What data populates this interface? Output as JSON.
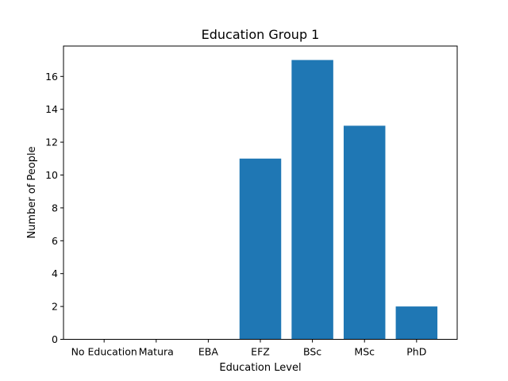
{
  "chart_data": {
    "type": "bar",
    "title": "Education Group 1",
    "xlabel": "Education Level",
    "ylabel": "Number of People",
    "categories": [
      "No Education",
      "Matura",
      "EBA",
      "EFZ",
      "BSc",
      "MSc",
      "PhD"
    ],
    "values": [
      0,
      0,
      0,
      11,
      17,
      13,
      2
    ],
    "ylim": [
      0,
      17.85
    ],
    "yticks": [
      0,
      2,
      4,
      6,
      8,
      10,
      12,
      14,
      16
    ],
    "bar_color": "#1f77b4",
    "grid": false,
    "legend": "none"
  }
}
